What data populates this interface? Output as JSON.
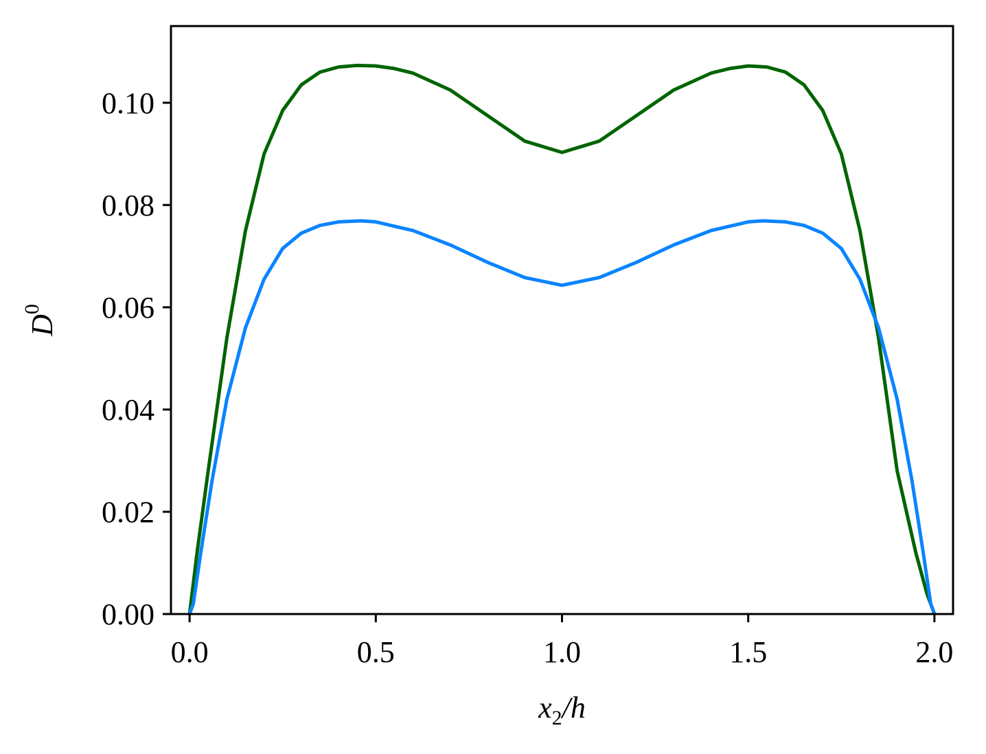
{
  "chart_data": {
    "type": "line",
    "xlabel": {
      "var": "x",
      "sub": "2",
      "rest": "/h"
    },
    "ylabel": {
      "var": "D",
      "sup": "0"
    },
    "xlim": [
      -0.05,
      2.05
    ],
    "ylim": [
      0.0,
      0.115
    ],
    "xticks": [
      0.0,
      0.5,
      1.0,
      1.5,
      2.0
    ],
    "xtick_labels": [
      "0.0",
      "0.5",
      "1.0",
      "1.5",
      "2.0"
    ],
    "yticks": [
      0.0,
      0.02,
      0.04,
      0.06,
      0.08,
      0.1
    ],
    "ytick_labels": [
      "0.00",
      "0.02",
      "0.04",
      "0.06",
      "0.08",
      "0.10"
    ],
    "grid": false,
    "series": [
      {
        "color": "#006400",
        "x": [
          0.0,
          0.02,
          0.05,
          0.1,
          0.15,
          0.2,
          0.25,
          0.3,
          0.35,
          0.4,
          0.45,
          0.5,
          0.55,
          0.6,
          0.7,
          0.8,
          0.9,
          1.0,
          1.1,
          1.2,
          1.3,
          1.4,
          1.45,
          1.5,
          1.55,
          1.6,
          1.65,
          1.7,
          1.75,
          1.8,
          1.85,
          1.9,
          1.95,
          1.98,
          2.0
        ],
        "y": [
          0.0,
          0.012,
          0.028,
          0.054,
          0.075,
          0.09,
          0.0985,
          0.1035,
          0.106,
          0.107,
          0.1073,
          0.1072,
          0.1067,
          0.1058,
          0.1025,
          0.0975,
          0.0925,
          0.0903,
          0.0925,
          0.0975,
          0.1025,
          0.1058,
          0.1067,
          0.1072,
          0.107,
          0.106,
          0.1035,
          0.0985,
          0.09,
          0.075,
          0.054,
          0.028,
          0.012,
          0.004,
          0.0
        ]
      },
      {
        "color": "#0a84ff",
        "x": [
          0.0,
          0.01,
          0.03,
          0.06,
          0.1,
          0.15,
          0.2,
          0.25,
          0.3,
          0.35,
          0.4,
          0.46,
          0.5,
          0.6,
          0.7,
          0.8,
          0.9,
          1.0,
          1.1,
          1.2,
          1.3,
          1.4,
          1.5,
          1.54,
          1.6,
          1.65,
          1.7,
          1.75,
          1.8,
          1.85,
          1.9,
          1.94,
          1.97,
          1.99,
          2.0
        ],
        "y": [
          0.0,
          0.002,
          0.012,
          0.026,
          0.042,
          0.056,
          0.0655,
          0.0715,
          0.0745,
          0.076,
          0.0767,
          0.0769,
          0.0767,
          0.075,
          0.0722,
          0.0688,
          0.0658,
          0.0643,
          0.0658,
          0.0688,
          0.0722,
          0.075,
          0.0767,
          0.0769,
          0.0767,
          0.076,
          0.0745,
          0.0715,
          0.0655,
          0.056,
          0.042,
          0.026,
          0.012,
          0.002,
          0.0
        ]
      }
    ]
  }
}
